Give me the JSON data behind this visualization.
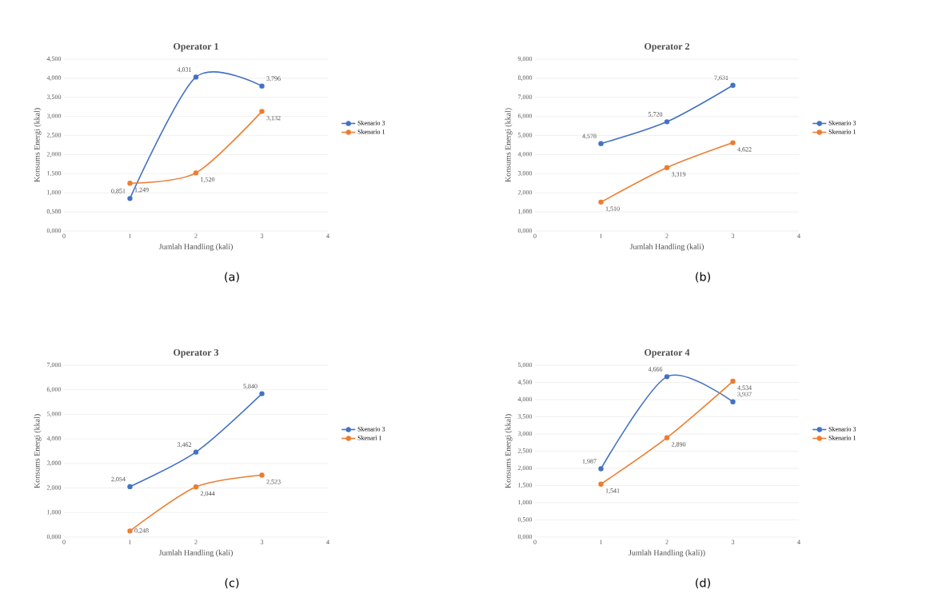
{
  "chart_data": [
    {
      "type": "line",
      "title": "Operator 1",
      "xlabel": "Jumlah Handling (kali)",
      "ylabel": "Konsums Energi (kkal)",
      "annotations": [
        "(a)"
      ],
      "x": [
        1,
        2,
        3
      ],
      "xlim": [
        0,
        4
      ],
      "xticks": [
        0,
        1,
        2,
        3,
        4
      ],
      "ylim": [
        0,
        4.5
      ],
      "yticks": [
        {
          "value": 0,
          "label": "0,000"
        },
        {
          "value": 0.5,
          "label": "0,500"
        },
        {
          "value": 1,
          "label": "1,000"
        },
        {
          "value": 1.5,
          "label": "1,500"
        },
        {
          "value": 2,
          "label": "2,000"
        },
        {
          "value": 2.5,
          "label": "2,500"
        },
        {
          "value": 3,
          "label": "3,000"
        },
        {
          "value": 3.5,
          "label": "3,500"
        },
        {
          "value": 4,
          "label": "4,000"
        },
        {
          "value": 4.5,
          "label": "4,500"
        }
      ],
      "grid": "y",
      "legend": "right",
      "marker": "circle",
      "series": [
        {
          "name": "Skenario 3",
          "color": "#4472c4",
          "values": [
            0.851,
            4.031,
            3.796
          ],
          "value_labels": [
            "0,851",
            "4,031",
            "3,796"
          ]
        },
        {
          "name": "Skenario 1",
          "color": "#ed7d31",
          "values": [
            1.249,
            1.52,
            3.132
          ],
          "value_labels": [
            "1,249",
            "1,520",
            "3,132"
          ]
        }
      ]
    },
    {
      "type": "line",
      "title": "Operator 2",
      "xlabel": "Jumlah Handling (kali)",
      "ylabel": "Konsums Energi (kkal)",
      "annotations": [
        "(b)"
      ],
      "x": [
        1,
        2,
        3
      ],
      "xlim": [
        0,
        4
      ],
      "xticks": [
        0,
        1,
        2,
        3,
        4
      ],
      "ylim": [
        0,
        9
      ],
      "yticks": [
        {
          "value": 0,
          "label": "0,000"
        },
        {
          "value": 1,
          "label": "1,000"
        },
        {
          "value": 2,
          "label": "2,000"
        },
        {
          "value": 3,
          "label": "3,000"
        },
        {
          "value": 4,
          "label": "4,000"
        },
        {
          "value": 5,
          "label": "5,000"
        },
        {
          "value": 6,
          "label": "6,000"
        },
        {
          "value": 7,
          "label": "7,000"
        },
        {
          "value": 8,
          "label": "8,000"
        },
        {
          "value": 9,
          "label": "9,000"
        }
      ],
      "grid": "y",
      "legend": "right",
      "marker": "circle",
      "series": [
        {
          "name": "Skenario 3",
          "color": "#4472c4",
          "values": [
            4.578,
            5.72,
            7.631
          ],
          "value_labels": [
            "4,578",
            "5,720",
            "7,631"
          ]
        },
        {
          "name": "Skenario 1",
          "color": "#ed7d31",
          "values": [
            1.51,
            3.319,
            4.622
          ],
          "value_labels": [
            "1,510",
            "3,319",
            "4,622"
          ]
        }
      ]
    },
    {
      "type": "line",
      "title": "Operator 3",
      "xlabel": "Jumlah Handling (kali)",
      "ylabel": "Konsums Energi (kkal)",
      "annotations": [
        "(c)"
      ],
      "x": [
        1,
        2,
        3
      ],
      "xlim": [
        0,
        4
      ],
      "xticks": [
        0,
        1,
        2,
        3,
        4
      ],
      "ylim": [
        0,
        7
      ],
      "yticks": [
        {
          "value": 0,
          "label": "0,000"
        },
        {
          "value": 1,
          "label": "1,000"
        },
        {
          "value": 2,
          "label": "2,000"
        },
        {
          "value": 3,
          "label": "3,000"
        },
        {
          "value": 4,
          "label": "4,000"
        },
        {
          "value": 5,
          "label": "5,000"
        },
        {
          "value": 6,
          "label": "6,000"
        },
        {
          "value": 7,
          "label": "7,000"
        }
      ],
      "grid": "y",
      "legend": "right",
      "marker": "circle",
      "series": [
        {
          "name": "Skenario 3",
          "color": "#4472c4",
          "values": [
            2.054,
            3.462,
            5.84
          ],
          "value_labels": [
            "2,054",
            "3,462",
            "5,840"
          ]
        },
        {
          "name": "Skenari 1",
          "color": "#ed7d31",
          "values": [
            0.248,
            2.044,
            2.523
          ],
          "value_labels": [
            "0,248",
            "2,044",
            "2,523"
          ]
        }
      ]
    },
    {
      "type": "line",
      "title": "Operator 4",
      "xlabel": "Jumlah Handling (kali))",
      "ylabel": "Konsums Energi (kkal)",
      "annotations": [
        "(d)"
      ],
      "x": [
        1,
        2,
        3
      ],
      "xlim": [
        0,
        4
      ],
      "xticks": [
        0,
        1,
        2,
        3,
        4
      ],
      "ylim": [
        0,
        5
      ],
      "yticks": [
        {
          "value": 0,
          "label": "0,000"
        },
        {
          "value": 0.5,
          "label": "0,500"
        },
        {
          "value": 1,
          "label": "1,000"
        },
        {
          "value": 1.5,
          "label": "1,500"
        },
        {
          "value": 2,
          "label": "2,000"
        },
        {
          "value": 2.5,
          "label": "2,500"
        },
        {
          "value": 3,
          "label": "3,000"
        },
        {
          "value": 3.5,
          "label": "3,500"
        },
        {
          "value": 4,
          "label": "4,000"
        },
        {
          "value": 4.5,
          "label": "4,500"
        },
        {
          "value": 5,
          "label": "5,000"
        }
      ],
      "grid": "y",
      "legend": "right",
      "marker": "circle",
      "series": [
        {
          "name": "Skenario 3",
          "color": "#4472c4",
          "values": [
            1.987,
            4.666,
            3.937
          ],
          "value_labels": [
            "1,987",
            "4,666",
            "3,937"
          ]
        },
        {
          "name": "Skenario 1",
          "color": "#ed7d31",
          "values": [
            1.541,
            2.89,
            4.534
          ],
          "value_labels": [
            "1,541",
            "2,890",
            "4,534"
          ]
        }
      ]
    }
  ]
}
